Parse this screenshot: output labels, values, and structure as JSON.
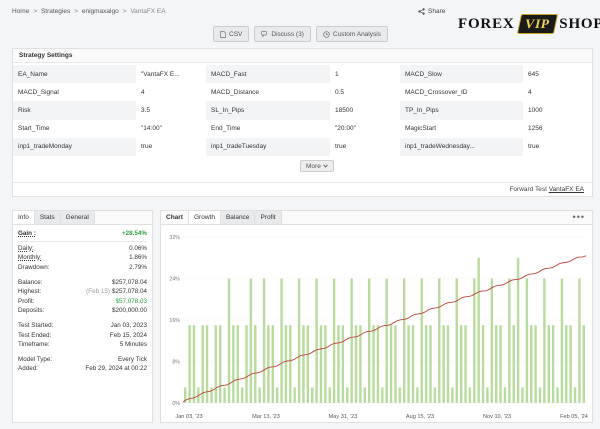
{
  "breadcrumb": [
    "Home",
    "Strategies",
    "enigmaxalgo",
    "VantaFX EA"
  ],
  "share_label": "Share",
  "logo": {
    "left": "FOREX",
    "mid": "VIP",
    "right": "SHOP"
  },
  "buttons": {
    "csv": "CSV",
    "discuss": "Discuss (3)",
    "custom": "Custom Analysis"
  },
  "settings": {
    "title": "Strategy Settings",
    "rows": [
      [
        "EA_Name",
        "\"VantaFX E...",
        "MACD_Fast",
        "1",
        "MACD_Slow",
        "645"
      ],
      [
        "MACD_Signal",
        "4",
        "MACD_Distance",
        "0.5",
        "MACD_Crossover_ID",
        "4"
      ],
      [
        "Risk",
        "3.5",
        "SL_In_Pips",
        "18500",
        "TP_In_Pips",
        "1000"
      ],
      [
        "Start_Time",
        "\"14:00\"",
        "End_Time",
        "\"20:00\"",
        "MagicStart",
        "1256"
      ],
      [
        "inp1_tradeMonday",
        "true",
        "inp1_tradeTuesday",
        "true",
        "inp1_tradeWednesday...",
        "true"
      ]
    ],
    "more_label": "More",
    "footer_prefix": "Forward Test",
    "footer_link": "VantaFX EA"
  },
  "info": {
    "tabs": [
      "Info",
      "Stats",
      "General"
    ],
    "gain_label": "Gain :",
    "gain_value": "+28.54%",
    "daily_label": "Daily:",
    "daily_value": "0.06%",
    "monthly_label": "Monthly:",
    "monthly_value": "1.86%",
    "drawdown_label": "Drawdown:",
    "drawdown_value": "2.79%",
    "balance_label": "Balance:",
    "balance_value": "$257,078.04",
    "highest_label": "Highest:",
    "highest_note": "(Feb 15)",
    "highest_value": "$257,078.04",
    "profit_label": "Profit:",
    "profit_value": "$57,078.03",
    "deposits_label": "Deposits:",
    "deposits_value": "$200,000.00",
    "started_label": "Test Started:",
    "started_value": "Jan 03, 2023",
    "ended_label": "Test Ended:",
    "ended_value": "Feb 15, 2024",
    "timeframe_label": "Timeframe:",
    "timeframe_value": "5 Minutes",
    "model_label": "Model Type:",
    "model_value": "Every Tick",
    "added_label": "Added:",
    "added_value": "Feb 29, 2024 at 00:22"
  },
  "chart_tabs": [
    "Chart",
    "Growth",
    "Balance",
    "Profit"
  ],
  "chart_menu": "•••",
  "chart_data": {
    "type": "bar",
    "y_ticks": [
      "0%",
      "8%",
      "16%",
      "24%",
      "32%"
    ],
    "ylim": [
      0,
      32
    ],
    "x_labels": [
      "Jan 03, '23",
      "Mar 13, '23",
      "May 31, '23",
      "Aug 15, '23",
      "Nov 10, '23",
      "Feb 05, '24"
    ],
    "bars": [
      3,
      15,
      15,
      3,
      15,
      15,
      3,
      15,
      15,
      3,
      24,
      15,
      15,
      3,
      15,
      24,
      15,
      3,
      24,
      15,
      15,
      3,
      24,
      15,
      15,
      3,
      24,
      15,
      15,
      3,
      24,
      15,
      15,
      3,
      24,
      15,
      15,
      3,
      24,
      15,
      15,
      3,
      24,
      15,
      15,
      3,
      24,
      15,
      15,
      3,
      24,
      15,
      15,
      3,
      24,
      15,
      15,
      3,
      24,
      15,
      15,
      3,
      24,
      15,
      15,
      3,
      24,
      28,
      15,
      3,
      24,
      15,
      15,
      3,
      24,
      15,
      28,
      3,
      24,
      15,
      15,
      3,
      24,
      15,
      15,
      3,
      24,
      15,
      15,
      3,
      24,
      15
    ],
    "line_start": 0.2,
    "line_end": 28.5,
    "colors": {
      "bar": "#b8dc9d",
      "line": "#c0443b"
    }
  }
}
